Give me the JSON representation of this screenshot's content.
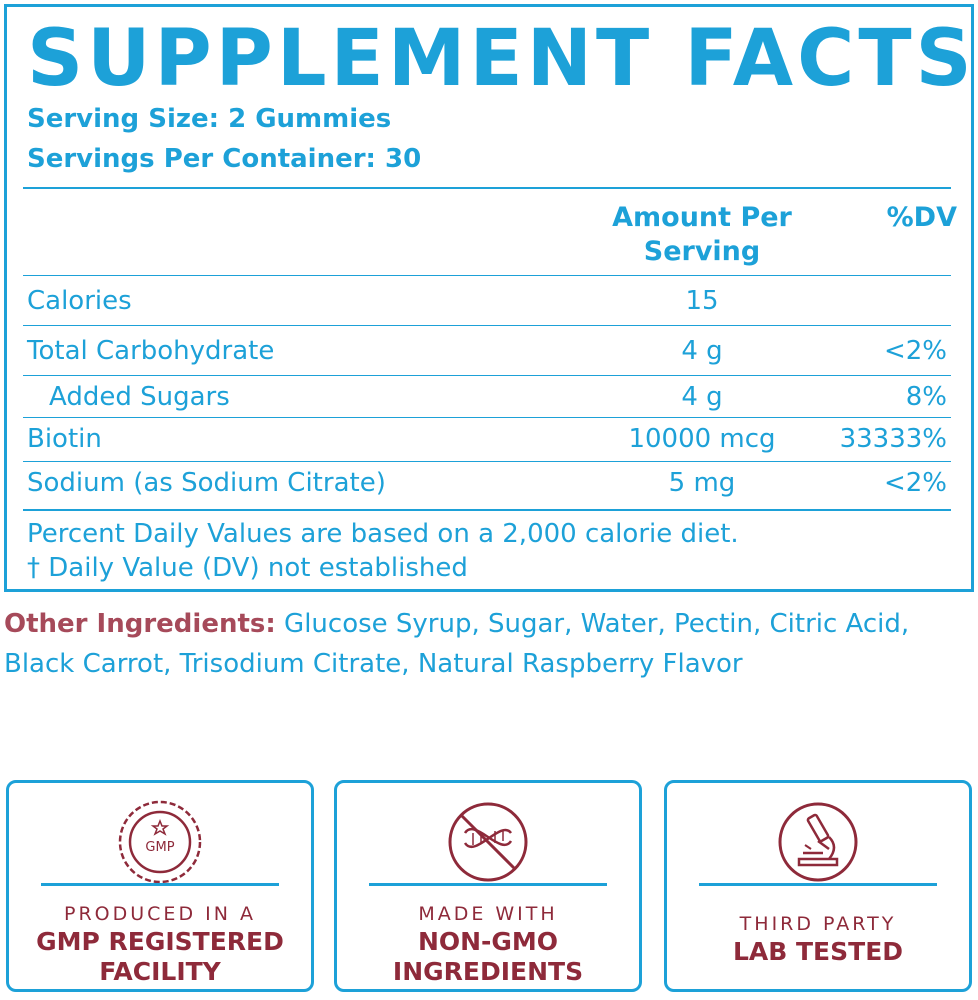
{
  "panel": {
    "title": "SUPPLEMENT FACTS",
    "serving_size": "Serving Size: 2 Gummies",
    "servings_per_container": "Servings Per Container: 30",
    "columns": {
      "amount": "Amount Per Serving",
      "dv": "%DV"
    },
    "rows": [
      {
        "name": "Calories",
        "amount": "15",
        "dv": ""
      },
      {
        "name": "Total Carbohydrate",
        "amount": "4 g",
        "dv": "<2%"
      },
      {
        "name": "Added Sugars",
        "amount": "4 g",
        "dv": "8%"
      },
      {
        "name": "Biotin",
        "amount": "10000 mcg",
        "dv": "33333%"
      },
      {
        "name": "Sodium (as Sodium Citrate)",
        "amount": "5 mg",
        "dv": "<2%"
      }
    ],
    "footnote1": "Percent Daily Values are based on a 2,000 calorie diet.",
    "footnote2": "† Daily Value (DV) not established"
  },
  "other_ingredients": {
    "label": "Other Ingredients:",
    "text": "Glucose Syrup, Sugar, Water, Pectin, Citric Acid, Black Carrot, Trisodium Citrate, Natural Raspberry Flavor"
  },
  "badges": [
    {
      "icon": "gmp-seal-icon",
      "icon_text": "GMP",
      "small": "PRODUCED IN A",
      "big1": "GMP REGISTERED",
      "big2": "FACILITY"
    },
    {
      "icon": "non-gmo-dna-icon",
      "small": "MADE WITH",
      "big1": "NON-GMO",
      "big2": "INGREDIENTS"
    },
    {
      "icon": "microscope-icon",
      "small": "THIRD PARTY",
      "big1": "LAB TESTED",
      "big2": ""
    }
  ],
  "colors": {
    "primary": "#1da1d8",
    "accent": "#8e2a3a",
    "label": "#a64a5a"
  }
}
